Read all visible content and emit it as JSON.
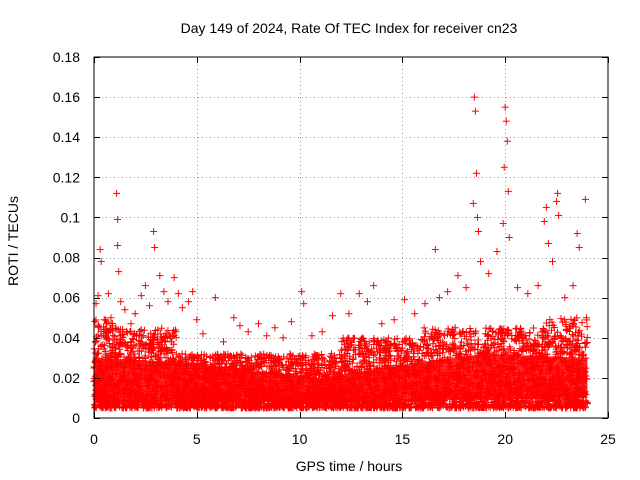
{
  "chart_data": {
    "type": "scatter",
    "title": "Day 149 of 2024, Rate Of TEC Index for receiver cn23",
    "xlabel": "GPS time / hours",
    "ylabel": "ROTI / TECUs",
    "xlim": [
      0,
      25
    ],
    "ylim": [
      0,
      0.18
    ],
    "x_ticks": [
      0,
      5,
      10,
      15,
      20,
      25
    ],
    "x_tick_labels": [
      "0",
      "5",
      "10",
      "15",
      "20",
      "25"
    ],
    "y_ticks": [
      0,
      0.02,
      0.04,
      0.06,
      0.08,
      0.1,
      0.12,
      0.14,
      0.16,
      0.18
    ],
    "y_tick_labels": [
      "0",
      "0.02",
      "0.04",
      "0.06",
      "0.08",
      "0.1",
      "0.12",
      "0.14",
      "0.16",
      "0.18"
    ],
    "grid": true,
    "marker": "plus",
    "series": [
      {
        "color": "#ff0000",
        "points": [
          [
            0.1,
            0.057
          ],
          [
            0.2,
            0.061
          ],
          [
            0.3,
            0.084
          ],
          [
            0.35,
            0.078
          ],
          [
            0.5,
            0.049
          ],
          [
            0.7,
            0.062
          ],
          [
            0.9,
            0.046
          ],
          [
            1.1,
            0.112
          ],
          [
            1.15,
            0.099
          ],
          [
            1.15,
            0.086
          ],
          [
            1.2,
            0.073
          ],
          [
            1.3,
            0.058
          ],
          [
            1.5,
            0.054
          ],
          [
            1.8,
            0.047
          ],
          [
            2.0,
            0.052
          ],
          [
            2.3,
            0.061
          ],
          [
            2.5,
            0.066
          ],
          [
            2.7,
            0.056
          ],
          [
            2.9,
            0.093
          ],
          [
            2.95,
            0.085
          ],
          [
            3.2,
            0.071
          ],
          [
            3.4,
            0.063
          ],
          [
            3.6,
            0.058
          ],
          [
            3.9,
            0.07
          ],
          [
            4.1,
            0.062
          ],
          [
            4.3,
            0.055
          ],
          [
            4.6,
            0.058
          ],
          [
            4.8,
            0.063
          ],
          [
            5.0,
            0.049
          ],
          [
            5.3,
            0.042
          ],
          [
            5.9,
            0.06
          ],
          [
            6.3,
            0.038
          ],
          [
            6.8,
            0.05
          ],
          [
            7.1,
            0.046
          ],
          [
            7.5,
            0.043
          ],
          [
            8.0,
            0.047
          ],
          [
            8.4,
            0.041
          ],
          [
            8.8,
            0.045
          ],
          [
            9.2,
            0.04
          ],
          [
            9.6,
            0.048
          ],
          [
            10.1,
            0.063
          ],
          [
            10.2,
            0.057
          ],
          [
            10.6,
            0.041
          ],
          [
            11.1,
            0.043
          ],
          [
            11.6,
            0.051
          ],
          [
            12.0,
            0.062
          ],
          [
            12.4,
            0.052
          ],
          [
            12.9,
            0.062
          ],
          [
            13.3,
            0.058
          ],
          [
            13.6,
            0.066
          ],
          [
            14.0,
            0.047
          ],
          [
            14.6,
            0.049
          ],
          [
            15.1,
            0.059
          ],
          [
            15.6,
            0.052
          ],
          [
            16.1,
            0.057
          ],
          [
            16.6,
            0.084
          ],
          [
            16.8,
            0.06
          ],
          [
            17.2,
            0.063
          ],
          [
            17.7,
            0.071
          ],
          [
            18.1,
            0.065
          ],
          [
            18.45,
            0.107
          ],
          [
            18.5,
            0.16
          ],
          [
            18.55,
            0.153
          ],
          [
            18.6,
            0.122
          ],
          [
            18.65,
            0.1
          ],
          [
            18.7,
            0.093
          ],
          [
            18.8,
            0.078
          ],
          [
            19.2,
            0.072
          ],
          [
            19.6,
            0.083
          ],
          [
            19.9,
            0.097
          ],
          [
            19.95,
            0.125
          ],
          [
            20.0,
            0.155
          ],
          [
            20.05,
            0.148
          ],
          [
            20.1,
            0.138
          ],
          [
            20.15,
            0.113
          ],
          [
            20.2,
            0.09
          ],
          [
            20.6,
            0.065
          ],
          [
            21.1,
            0.062
          ],
          [
            21.6,
            0.066
          ],
          [
            21.9,
            0.098
          ],
          [
            22.0,
            0.105
          ],
          [
            22.1,
            0.087
          ],
          [
            22.3,
            0.078
          ],
          [
            22.5,
            0.108
          ],
          [
            22.55,
            0.112
          ],
          [
            22.6,
            0.101
          ],
          [
            22.9,
            0.06
          ],
          [
            23.3,
            0.066
          ],
          [
            23.5,
            0.092
          ],
          [
            23.6,
            0.085
          ],
          [
            23.9,
            0.109
          ],
          [
            23.95,
            0.05
          ]
        ]
      }
    ]
  }
}
